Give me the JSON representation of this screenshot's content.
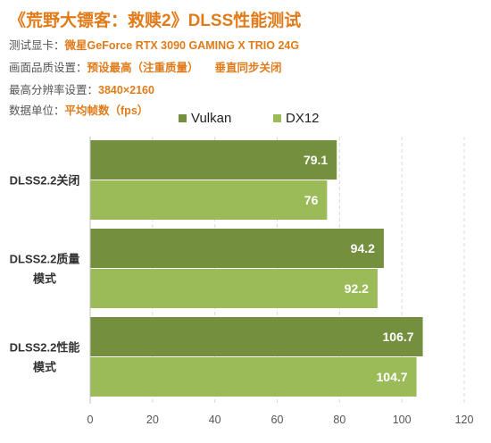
{
  "header": {
    "title": "《荒野大镖客：救赎2》DLSS性能测试",
    "info": [
      {
        "key": "测试显卡：",
        "value": "微星GeForce RTX 3090 GAMING X TRIO 24G",
        "extra": ""
      },
      {
        "key": "画面品质设置：",
        "value": "预设最高（注重质量）",
        "extra": "垂直同步关闭"
      },
      {
        "key": "最高分辨率设置：",
        "value": "3840×2160",
        "extra": ""
      },
      {
        "key": "数据单位：",
        "value": "平均帧数（fps）",
        "extra": ""
      }
    ]
  },
  "colors": {
    "vulkan": "#748f3d",
    "dx12": "#9bbb59",
    "accent": "#e07b1a",
    "grid": "#d9d9d9"
  },
  "chart_data": {
    "type": "bar",
    "orientation": "horizontal",
    "categories": [
      [
        "DLSS2.2关闭"
      ],
      [
        "DLSS2.2质量",
        "模式"
      ],
      [
        "DLSS2.2性能",
        "模式"
      ]
    ],
    "series": [
      {
        "name": "Vulkan",
        "values": [
          79.1,
          94.2,
          106.7
        ]
      },
      {
        "name": "DX12",
        "values": [
          76,
          92.2,
          104.7
        ]
      }
    ],
    "xlim": [
      0,
      120
    ],
    "xticks": [
      0,
      20,
      40,
      60,
      80,
      100,
      120
    ],
    "grid": "dashed vertical",
    "legend": "top"
  }
}
